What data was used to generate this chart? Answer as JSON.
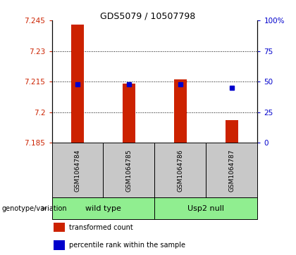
{
  "title": "GDS5079 / 10507798",
  "samples": [
    "GSM1064784",
    "GSM1064785",
    "GSM1064786",
    "GSM1064787"
  ],
  "bar_values": [
    7.243,
    7.214,
    7.216,
    7.196
  ],
  "bar_base": 7.185,
  "percentile_values": [
    48,
    48,
    48,
    45
  ],
  "left_ylim": [
    7.185,
    7.245
  ],
  "right_ylim": [
    0,
    100
  ],
  "left_yticks": [
    7.185,
    7.2,
    7.215,
    7.23,
    7.245
  ],
  "right_yticks": [
    0,
    25,
    50,
    75,
    100
  ],
  "right_yticklabels": [
    "0",
    "25",
    "50",
    "75",
    "100%"
  ],
  "bar_color": "#cc2200",
  "marker_color": "#0000cc",
  "group_bg": "#c8c8c8",
  "green_bg": "#90EE90",
  "genotype_label": "genotype/variation",
  "group1_label": "wild type",
  "group2_label": "Usp2 null",
  "legend_items": [
    {
      "color": "#cc2200",
      "label": "transformed count"
    },
    {
      "color": "#0000cc",
      "label": "percentile rank within the sample"
    }
  ],
  "grid_lines": [
    7.2,
    7.215,
    7.23
  ]
}
